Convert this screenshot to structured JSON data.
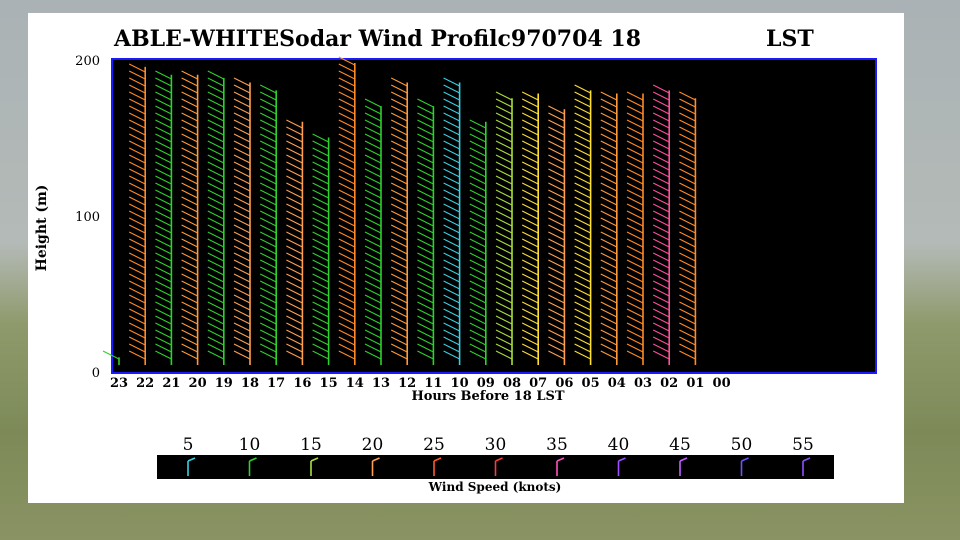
{
  "chart_data": {
    "type": "wind-barb-profile",
    "title": "ABLE-WHITESodar Wind Profilc970704 18",
    "title_suffix": "LST",
    "xlabel": "Hours Before  18    LST",
    "ylabel": "Height (m)",
    "y_ticks": [
      "200",
      "100",
      "0"
    ],
    "ylim": [
      0,
      200
    ],
    "x_ticks": [
      "23",
      "22",
      "21",
      "20",
      "19",
      "18",
      "17",
      "16",
      "15",
      "14",
      "13",
      "12",
      "11",
      "10",
      "09",
      "08",
      "07",
      "06",
      "05",
      "04",
      "03",
      "02",
      "01",
      "00"
    ],
    "columns": [
      {
        "hour": "23",
        "top": 10,
        "color": "#2ed12e"
      },
      {
        "hour": "22",
        "top": 195,
        "color": "#ff8a2a"
      },
      {
        "hour": "21",
        "top": 190,
        "color": "#2ed12e"
      },
      {
        "hour": "20",
        "top": 190,
        "color": "#ff9a3a"
      },
      {
        "hour": "19",
        "top": 188,
        "color": "#2ed12e"
      },
      {
        "hour": "18",
        "top": 185,
        "color": "#ffa050"
      },
      {
        "hour": "17",
        "top": 180,
        "color": "#2ed12e"
      },
      {
        "hour": "16",
        "top": 160,
        "color": "#ffa050"
      },
      {
        "hour": "15",
        "top": 150,
        "color": "#2ed12e"
      },
      {
        "hour": "14",
        "top": 200,
        "color": "#ff8a2a"
      },
      {
        "hour": "13",
        "top": 170,
        "color": "#2ed12e"
      },
      {
        "hour": "12",
        "top": 185,
        "color": "#ff9a3a"
      },
      {
        "hour": "11",
        "top": 170,
        "color": "#2ed12e"
      },
      {
        "hour": "10",
        "top": 185,
        "color": "#3ad0e0"
      },
      {
        "hour": "09",
        "top": 160,
        "color": "#2ed12e"
      },
      {
        "hour": "08",
        "top": 175,
        "color": "#a8e03a"
      },
      {
        "hour": "07",
        "top": 178,
        "color": "#ffe030"
      },
      {
        "hour": "06",
        "top": 168,
        "color": "#ffa050"
      },
      {
        "hour": "05",
        "top": 180,
        "color": "#ffe030"
      },
      {
        "hour": "04",
        "top": 178,
        "color": "#ff9a3a"
      },
      {
        "hour": "03",
        "top": 178,
        "color": "#ff8a2a"
      },
      {
        "hour": "02",
        "top": 180,
        "color": "#ff50a0"
      },
      {
        "hour": "01",
        "top": 175,
        "color": "#ff8a2a"
      }
    ],
    "legend": {
      "title": "Wind Speed (knots)",
      "entries": [
        {
          "label": "5",
          "color": "#3ad0e0"
        },
        {
          "label": "10",
          "color": "#2ed12e"
        },
        {
          "label": "15",
          "color": "#a8e03a"
        },
        {
          "label": "20",
          "color": "#ffa050"
        },
        {
          "label": "25",
          "color": "#ff5a2a"
        },
        {
          "label": "30",
          "color": "#ff3a3a"
        },
        {
          "label": "35",
          "color": "#ff50c0"
        },
        {
          "label": "40",
          "color": "#a050ff"
        },
        {
          "label": "45",
          "color": "#c060ff"
        },
        {
          "label": "50",
          "color": "#7050ff"
        },
        {
          "label": "55",
          "color": "#9050ff"
        }
      ]
    },
    "colors": {
      "plot_bg": "#000000",
      "axis_frame": "#1a1aff"
    }
  }
}
